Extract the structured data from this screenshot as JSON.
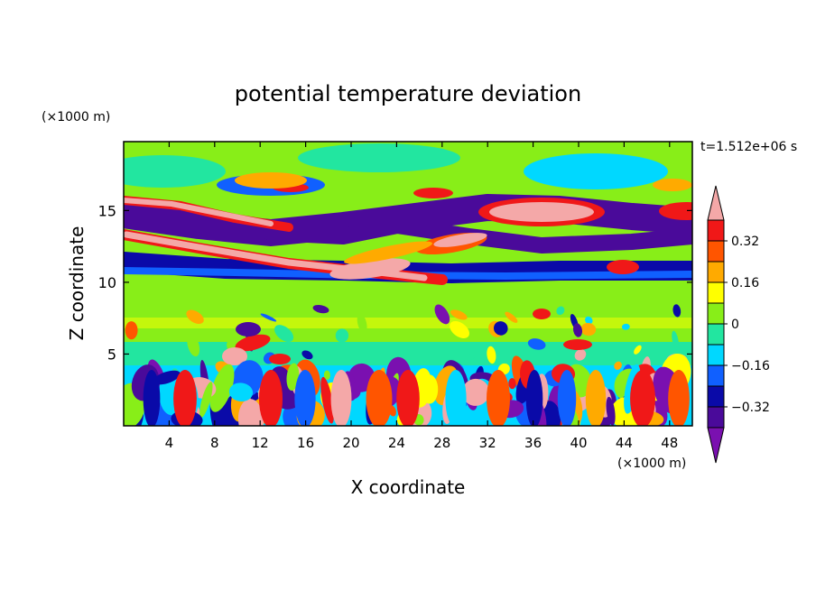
{
  "chart_data": {
    "type": "heatmap",
    "title": "potential temperature deviation",
    "xlabel": "X coordinate",
    "ylabel": "Z coordinate",
    "x_unit": "(×1000 m)",
    "y_unit": "(×1000 m)",
    "time_label": "t=1.512e+06 s",
    "xlim": [
      0,
      50
    ],
    "ylim": [
      0,
      19.8
    ],
    "x_ticks": [
      4,
      8,
      12,
      16,
      20,
      24,
      28,
      32,
      36,
      40,
      44,
      48
    ],
    "y_ticks": [
      5,
      10,
      15
    ],
    "x_tick_labels": [
      "4",
      "8",
      "12",
      "16",
      "20",
      "24",
      "28",
      "32",
      "36",
      "40",
      "44",
      "48"
    ],
    "y_tick_labels": [
      "5",
      "10",
      "15"
    ],
    "colorbar": {
      "levels": [
        -0.4,
        -0.32,
        -0.24,
        -0.16,
        -0.08,
        0,
        0.08,
        0.16,
        0.24,
        0.32,
        0.4
      ],
      "tick_values": [
        0.32,
        0.16,
        0,
        -0.16,
        -0.32
      ],
      "tick_labels": [
        "0.32",
        "0.16",
        "0",
        "−0.16",
        "−0.32"
      ],
      "colors": [
        "#7a10b0",
        "#4a0a9a",
        "#0a0aa8",
        "#1060ff",
        "#00d8ff",
        "#22e6a0",
        "#88ee18",
        "#ffff00",
        "#ffaa00",
        "#ff5500",
        "#f01818",
        "#f4a8a8"
      ],
      "extend": "both"
    }
  }
}
